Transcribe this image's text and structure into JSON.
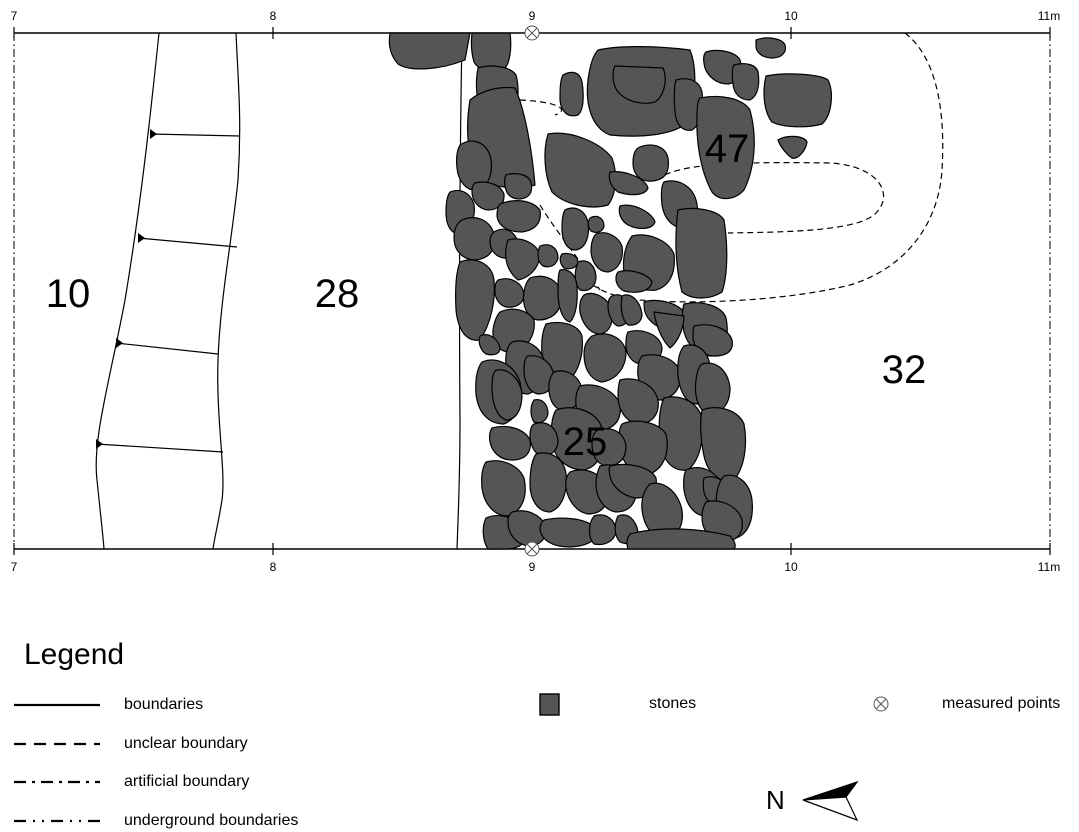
{
  "plan": {
    "grid_labels": [
      "7",
      "8",
      "9",
      "10",
      "11m"
    ],
    "contexts": [
      {
        "id": "ctx-10",
        "label": "10"
      },
      {
        "id": "ctx-28",
        "label": "28"
      },
      {
        "id": "ctx-47",
        "label": "47"
      },
      {
        "id": "ctx-32",
        "label": "32"
      },
      {
        "id": "ctx-25",
        "label": "25"
      }
    ]
  },
  "legend": {
    "title": "Legend",
    "items": [
      {
        "symbol": "solid-line",
        "label": "boundaries"
      },
      {
        "symbol": "dashed-line",
        "label": "unclear boundary"
      },
      {
        "symbol": "dash-dot-line",
        "label": "artificial boundary"
      },
      {
        "symbol": "dash-dot-dot-line",
        "label": "underground boundaries"
      },
      {
        "symbol": "stone-swatch",
        "label": "stones"
      },
      {
        "symbol": "measured-point-icon",
        "label": "measured points"
      }
    ]
  },
  "north_arrow": {
    "label": "N"
  },
  "colors": {
    "stone_fill": "#555555",
    "line": "#000000",
    "background": "#ffffff"
  }
}
